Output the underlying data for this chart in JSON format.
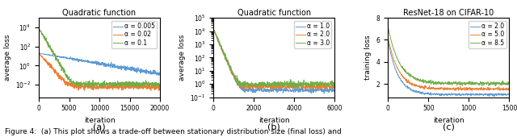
{
  "fig_width": 6.4,
  "fig_height": 1.7,
  "dpi": 100,
  "plot_a": {
    "title": "Quadratic function",
    "xlabel": "iteration",
    "ylabel": "average loss",
    "xlim": [
      0,
      20000
    ],
    "series": [
      {
        "label": "α = 0.005",
        "color": "#5b9bd5",
        "start_val": 20.0,
        "plateau": 0.004,
        "tau": 4000,
        "noise_rel": 0.25
      },
      {
        "label": "α = 0.02",
        "color": "#ed7d31",
        "start_val": 20.0,
        "plateau": 0.006,
        "tau": 600,
        "noise_rel": 0.3
      },
      {
        "label": "α = 0.1",
        "color": "#70ad47",
        "start_val": 8000.0,
        "plateau": 0.012,
        "tau": 400,
        "noise_rel": 0.3
      }
    ],
    "n_points": 800,
    "xticks": [
      0,
      5000,
      10000,
      15000,
      20000
    ],
    "ylim": [
      0.0005,
      100000.0
    ]
  },
  "plot_b": {
    "title": "Quadratic function",
    "xlabel": "iteration",
    "ylabel": "average loss",
    "xlim": [
      0,
      6000
    ],
    "series": [
      {
        "label": "α = 1.0",
        "color": "#5b9bd5",
        "start_val": 15000.0,
        "plateau": 0.35,
        "tau": 120,
        "noise_rel": 0.2
      },
      {
        "label": "α = 2.0",
        "color": "#ed7d31",
        "start_val": 15000.0,
        "plateau": 0.65,
        "tau": 120,
        "noise_rel": 0.22
      },
      {
        "label": "α = 3.0",
        "color": "#70ad47",
        "start_val": 15000.0,
        "plateau": 1.0,
        "tau": 120,
        "noise_rel": 0.25
      }
    ],
    "n_points": 600,
    "xticks": [
      0,
      2000,
      4000,
      6000
    ],
    "ylim": [
      0.1,
      100000.0
    ]
  },
  "plot_c": {
    "title": "ResNet-18 on CIFAR-10",
    "xlabel": "iteration",
    "ylabel": "training loss",
    "xlim": [
      0,
      1500
    ],
    "ylim": [
      0.8,
      8.0
    ],
    "series": [
      {
        "label": "α = 2.0",
        "color": "#5b9bd5",
        "start_val": 6.0,
        "plateau": 1.05,
        "tau": 120,
        "noise_abs": 0.055
      },
      {
        "label": "α = 5.0",
        "color": "#ed7d31",
        "start_val": 6.2,
        "plateau": 1.55,
        "tau": 130,
        "noise_abs": 0.065
      },
      {
        "label": "α = 8.5",
        "color": "#70ad47",
        "start_val": 7.2,
        "plateau": 2.05,
        "tau": 140,
        "noise_abs": 0.08
      }
    ],
    "n_points": 500,
    "xticks": [
      0,
      500,
      1000,
      1500
    ]
  },
  "caption": "Figure 4:  (a) This plot shows a trade-off between stationary distribution size (final loss) and"
}
